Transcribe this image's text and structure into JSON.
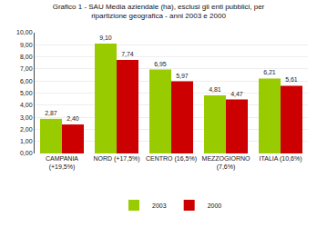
{
  "chart_data": {
    "type": "bar",
    "title": "Grafico 1 - SAU Media aziendale (ha), esclusi gli enti pubblici, per\nripartizione geografica - anni 2003 e 2000",
    "categories": [
      "CAMPANIA\n(+19,5%)",
      "NORD (+17,5%)",
      "CENTRO (16,5%)",
      "MEZZOGIORNO\n(7,6%)",
      "ITALIA (10,6%)"
    ],
    "series": [
      {
        "name": "2003",
        "color": "#99cc00",
        "values": [
          2.87,
          9.1,
          6.95,
          4.81,
          6.21
        ],
        "value_labels": [
          "2,87",
          "9,10",
          "6,95",
          "4,81",
          "6,21"
        ]
      },
      {
        "name": "2000",
        "color": "#cc0000",
        "values": [
          2.4,
          7.74,
          5.97,
          4.47,
          5.61
        ],
        "value_labels": [
          "2,40",
          "7,74",
          "5,97",
          "4,47",
          "5,61"
        ]
      }
    ],
    "ylim": [
      0,
      10
    ],
    "yticks": [
      {
        "value": 0,
        "label": "0,00"
      },
      {
        "value": 1,
        "label": "1,00"
      },
      {
        "value": 2,
        "label": "2,00"
      },
      {
        "value": 3,
        "label": "3,00"
      },
      {
        "value": 4,
        "label": "4,00"
      },
      {
        "value": 5,
        "label": "5,00"
      },
      {
        "value": 6,
        "label": "6,00"
      },
      {
        "value": 7,
        "label": "7,00"
      },
      {
        "value": 8,
        "label": "8,00"
      },
      {
        "value": 9,
        "label": "9,00"
      },
      {
        "value": 10,
        "label": "10,00"
      }
    ],
    "grid": true,
    "legend": "bottom",
    "data_labels": true
  }
}
